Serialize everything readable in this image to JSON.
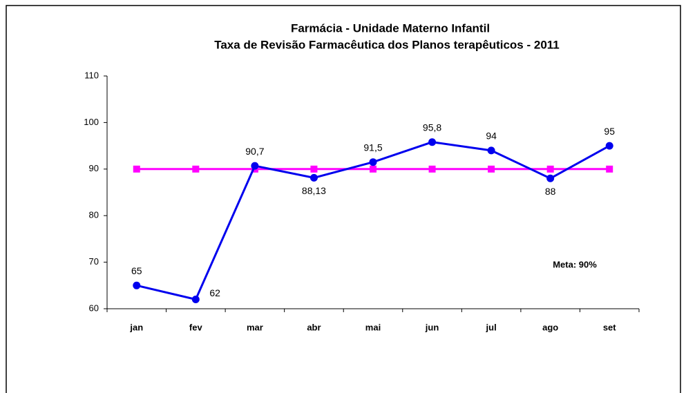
{
  "chart_data": {
    "type": "line",
    "title": [
      "Farmácia - Unidade Materno Infantil",
      "Taxa de Revisão Farmacêutica dos Planos terapêuticos - 2011"
    ],
    "categories": [
      "jan",
      "fev",
      "mar",
      "abr",
      "mai",
      "jun",
      "jul",
      "ago",
      "set"
    ],
    "series": [
      {
        "color": "#0000ee",
        "marker": "circle",
        "values": [
          65,
          62,
          90.7,
          88.13,
          91.5,
          95.8,
          94,
          88,
          95
        ],
        "value_labels": [
          "65",
          "62",
          "90,7",
          "88,13",
          "91,5",
          "95,8",
          "94",
          "88",
          "95"
        ]
      },
      {
        "color": "#ff00ff",
        "marker": "square",
        "values": [
          90,
          90,
          90,
          90,
          90,
          90,
          90,
          90,
          90
        ]
      }
    ],
    "annotation": "Meta: 90%",
    "ylim": [
      60,
      110
    ],
    "yticks": [
      60,
      70,
      80,
      90,
      100,
      110
    ],
    "grid": false
  }
}
